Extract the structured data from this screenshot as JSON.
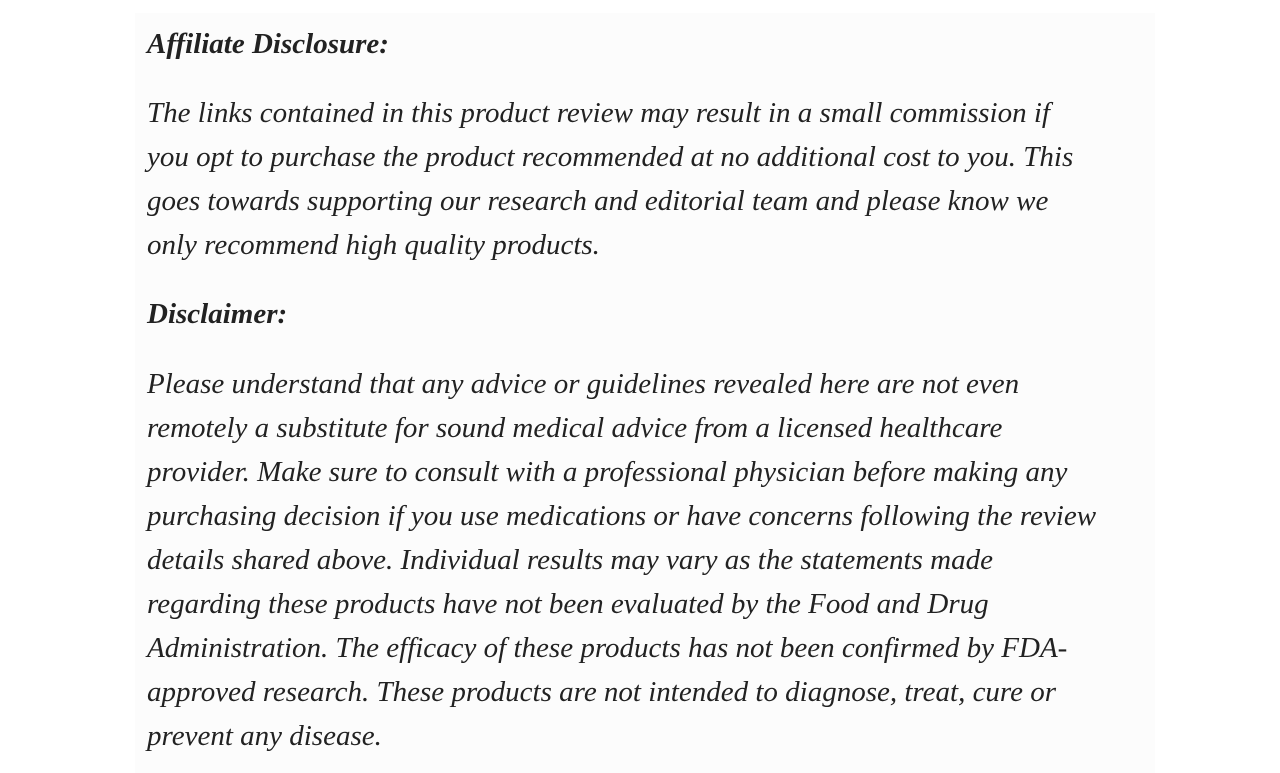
{
  "affiliate": {
    "heading": "Affiliate Disclosure:",
    "lines": [
      "The links contained in this product review may result in a small commission if",
      "you opt to purchase the product recommended at no additional cost to you. This",
      "goes towards supporting our research and editorial team and please know we",
      "only recommend high quality products."
    ]
  },
  "disclaimer": {
    "heading": "Disclaimer:",
    "lines": [
      "Please understand that any advice or guidelines revealed here are not even",
      "remotely a substitute for sound medical advice from a licensed healthcare",
      "provider. Make sure to consult with a professional physician before making any",
      "purchasing decision if you use medications or have concerns following the review",
      "details shared above. Individual results may vary as the statements made",
      "regarding these products have not been evaluated by the Food and Drug",
      "Administration. The efficacy of these products has not been confirmed by FDA-",
      "approved research. These products are not intended to diagnose, treat, cure or",
      "prevent any disease."
    ]
  }
}
